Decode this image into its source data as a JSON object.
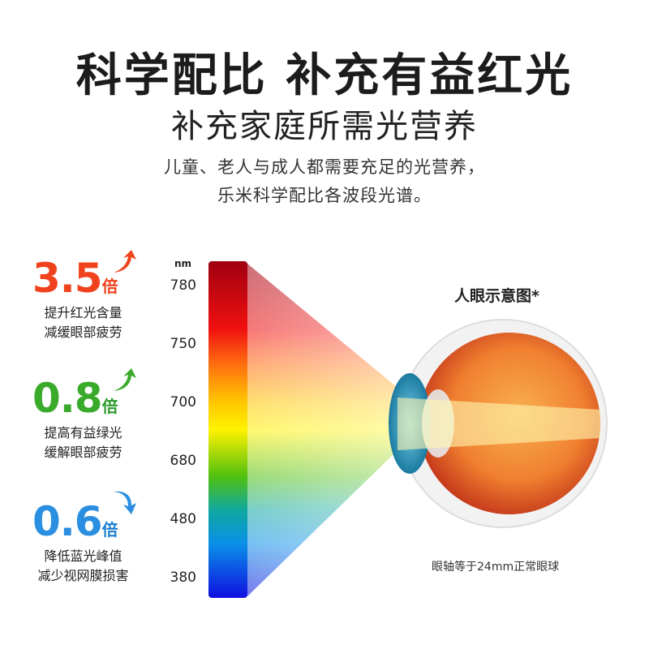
{
  "header": {
    "title": "科学配比 补充有益红光",
    "subtitle": "补充家庭所需光营养",
    "desc_line1": "儿童、老人与成人都需要充足的光营养，",
    "desc_line2": "乐米科学配比各波段光谱。"
  },
  "stats": [
    {
      "value": "3.5",
      "unit": "倍",
      "line1": "提升红光含量",
      "line2": "减缓眼部疲劳",
      "color": "#f0421c",
      "arrow": "arrow-up-icon"
    },
    {
      "value": "0.8",
      "unit": "倍",
      "line1": "提高有益绿光",
      "line2": "缓解眼部疲劳",
      "color": "#3aaa2a",
      "arrow": "arrow-up-icon"
    },
    {
      "value": "0.6",
      "unit": "倍",
      "line1": "降低蓝光峰值",
      "line2": "减少视网膜损害",
      "color": "#2a8fe0",
      "arrow": "arrow-down-icon"
    }
  ],
  "spectrum": {
    "unit": "nm",
    "ticks": [
      "780",
      "750",
      "700",
      "680",
      "480",
      "380"
    ]
  },
  "eye": {
    "label": "人眼示意图*",
    "note": "眼轴等于24mm正常眼球"
  }
}
